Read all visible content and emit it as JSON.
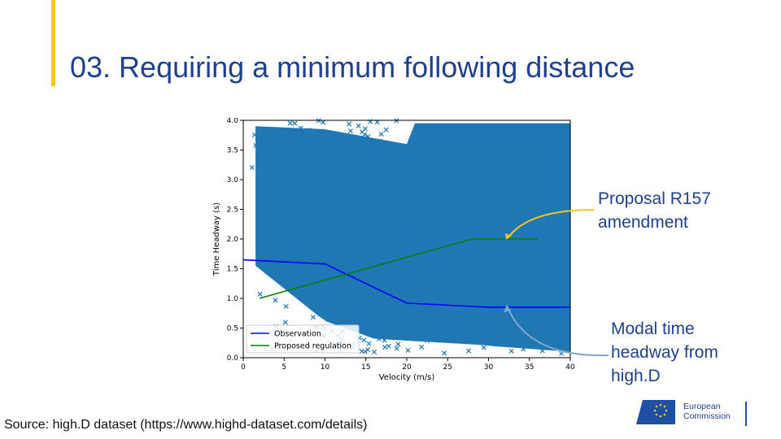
{
  "slide": {
    "title": "03. Requiring a minimum following distance",
    "source": "Source: high.D dataset (https://www.highd-dataset.com/details)"
  },
  "annotations": {
    "proposal_line1": "Proposal R157",
    "proposal_line2": "amendment",
    "modal_line1": "Modal time",
    "modal_line2": "headway from",
    "modal_line3": "high.D"
  },
  "logo": {
    "line1": "European",
    "line2": "Commission"
  },
  "colors": {
    "title": "#1f3f8f",
    "accent": "#f7c520",
    "scatter": "#1f77b4",
    "observation": "#0000ff",
    "regulation": "#008000",
    "arrow_proposal": "#f7c520",
    "arrow_modal": "#7fa7c9"
  },
  "chart_data": {
    "type": "scatter",
    "xlabel": "Velocity (m/s)",
    "ylabel": "Time Headway (s)",
    "xlim": [
      0,
      40
    ],
    "ylim": [
      0,
      4
    ],
    "xticks": [
      "0",
      "5",
      "10",
      "15",
      "20",
      "25",
      "30",
      "35",
      "40"
    ],
    "yticks": [
      "0.0",
      "0.5",
      "1.0",
      "1.5",
      "2.0",
      "2.5",
      "3.0",
      "3.5",
      "4.0"
    ],
    "grid": false,
    "legend_position": "bottom-left",
    "series": [
      {
        "name": "Observation",
        "kind": "line",
        "x": [
          0,
          10,
          20,
          30,
          40
        ],
        "y": [
          1.65,
          1.58,
          0.92,
          0.85,
          0.85
        ]
      },
      {
        "name": "Proposed regulation",
        "kind": "line",
        "x": [
          2,
          28,
          36
        ],
        "y": [
          1.0,
          2.0,
          2.0
        ]
      }
    ]
  }
}
